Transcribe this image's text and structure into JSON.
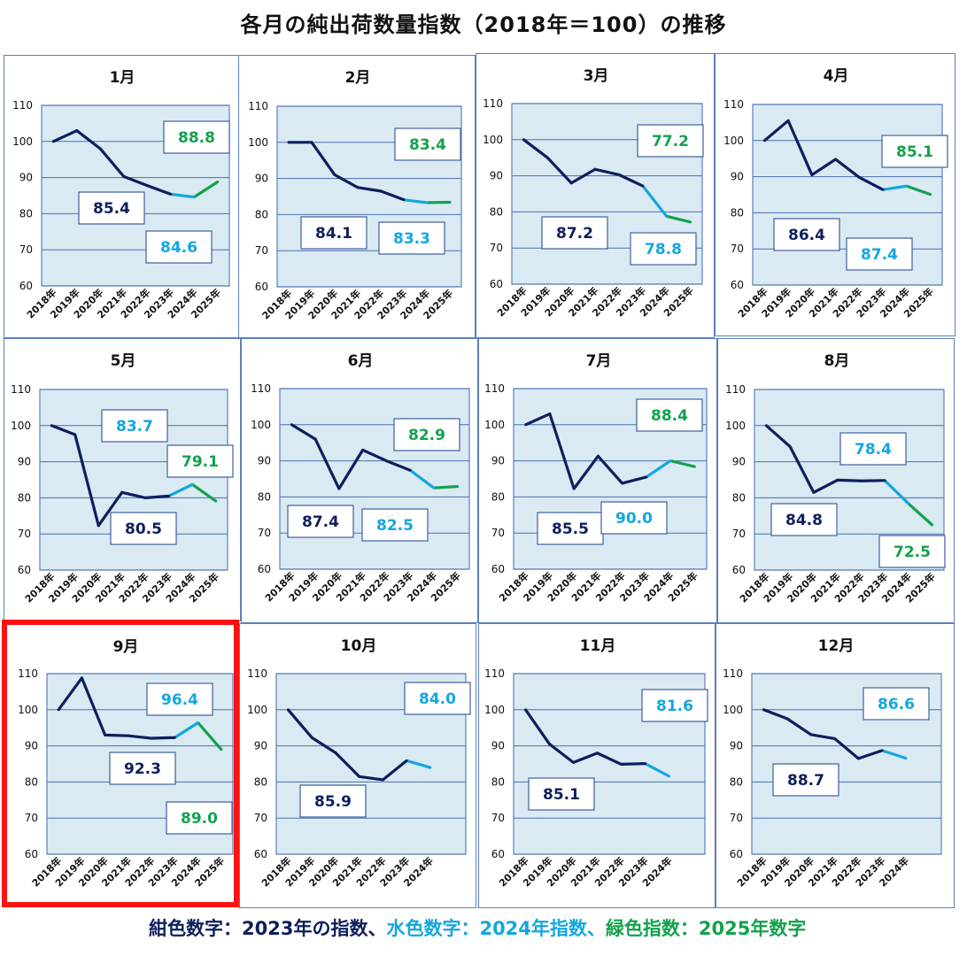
{
  "title": "各月の純出荷数量指数（2018年＝100）の推移",
  "footer": {
    "navy_text": "紺色数字：2023年の指数、",
    "light_text": "水色数字：2024年指数、",
    "green_text": "緑色指数：2025年数字"
  },
  "colors": {
    "navy": "#0d1f5c",
    "light_blue": "#14a6e0",
    "green": "#12a24b",
    "plot_bg": "#daeaf3",
    "highlight_frame": "#ff1111"
  },
  "chart_data": [
    {
      "type": "line",
      "title": "1月",
      "ylim": [
        60,
        110
      ],
      "yticks": [
        "60",
        "70",
        "80",
        "90",
        "100",
        "110"
      ],
      "categories": [
        "2018年",
        "2019年",
        "2020年",
        "2021年",
        "2022年",
        "2023年",
        "2024年",
        "2025年"
      ],
      "values": [
        100,
        103,
        98,
        90.3,
        87.8,
        85.4,
        84.6,
        88.8
      ],
      "labels": {
        "y2023": "85.4",
        "y2024": "84.6",
        "y2025": "88.8"
      }
    },
    {
      "type": "line",
      "title": "2月",
      "ylim": [
        60,
        110
      ],
      "yticks": [
        "60",
        "70",
        "80",
        "90",
        "100",
        "110"
      ],
      "categories": [
        "2018年",
        "2019年",
        "2020年",
        "2021年",
        "2022年",
        "2023年",
        "2024年",
        "2025年"
      ],
      "values": [
        100,
        100,
        91,
        87.5,
        86.5,
        84.1,
        83.3,
        83.4
      ],
      "labels": {
        "y2023": "84.1",
        "y2024": "83.3",
        "y2025": "83.4"
      }
    },
    {
      "type": "line",
      "title": "3月",
      "ylim": [
        60,
        110
      ],
      "yticks": [
        "60",
        "70",
        "80",
        "90",
        "100",
        "110"
      ],
      "categories": [
        "2018年",
        "2019年",
        "2020年",
        "2021年",
        "2022年",
        "2023年",
        "2024年",
        "2025年"
      ],
      "values": [
        100,
        95,
        88,
        91.8,
        90.3,
        87.2,
        78.8,
        77.2
      ],
      "labels": {
        "y2023": "87.2",
        "y2024": "78.8",
        "y2025": "77.2"
      }
    },
    {
      "type": "line",
      "title": "4月",
      "ylim": [
        60,
        110
      ],
      "yticks": [
        "60",
        "70",
        "80",
        "90",
        "100",
        "110"
      ],
      "categories": [
        "2018年",
        "2019年",
        "2020年",
        "2021年",
        "2022年",
        "2023年",
        "2024年",
        "2025年"
      ],
      "values": [
        100,
        105.5,
        90.5,
        94.8,
        89.8,
        86.4,
        87.4,
        85.1
      ],
      "labels": {
        "y2023": "86.4",
        "y2024": "87.4",
        "y2025": "85.1"
      }
    },
    {
      "type": "line",
      "title": "5月",
      "ylim": [
        60,
        110
      ],
      "yticks": [
        "60",
        "70",
        "80",
        "90",
        "100",
        "110"
      ],
      "categories": [
        "2018年",
        "2019年",
        "2020年",
        "2021年",
        "2022年",
        "2023年",
        "2024年",
        "2025年"
      ],
      "values": [
        100,
        97.5,
        72.3,
        81.5,
        80,
        80.5,
        83.7,
        79.1
      ],
      "labels": {
        "y2023": "80.5",
        "y2024": "83.7",
        "y2025": "79.1"
      }
    },
    {
      "type": "line",
      "title": "6月",
      "ylim": [
        60,
        110
      ],
      "yticks": [
        "60",
        "70",
        "80",
        "90",
        "100",
        "110"
      ],
      "categories": [
        "2018年",
        "2019年",
        "2020年",
        "2021年",
        "2022年",
        "2023年",
        "2024年",
        "2025年"
      ],
      "values": [
        100,
        96,
        82.3,
        93,
        90,
        87.4,
        82.5,
        82.9
      ],
      "labels": {
        "y2023": "87.4",
        "y2024": "82.5",
        "y2025": "82.9"
      }
    },
    {
      "type": "line",
      "title": "7月",
      "ylim": [
        60,
        110
      ],
      "yticks": [
        "60",
        "70",
        "80",
        "90",
        "100",
        "110"
      ],
      "categories": [
        "2018年",
        "2019年",
        "2020年",
        "2021年",
        "2022年",
        "2023年",
        "2024年",
        "2025年"
      ],
      "values": [
        100,
        103,
        82.3,
        91.3,
        83.8,
        85.5,
        90.0,
        88.4
      ],
      "labels": {
        "y2023": "85.5",
        "y2024": "90.0",
        "y2025": "88.4"
      }
    },
    {
      "type": "line",
      "title": "8月",
      "ylim": [
        60,
        110
      ],
      "yticks": [
        "60",
        "70",
        "80",
        "90",
        "100",
        "110"
      ],
      "categories": [
        "2018年",
        "2019年",
        "2020年",
        "2021年",
        "2022年",
        "2023年",
        "2024年",
        "2025年"
      ],
      "values": [
        100,
        94.2,
        81.5,
        84.9,
        84.7,
        84.8,
        78.4,
        72.5
      ],
      "labels": {
        "y2023": "84.8",
        "y2024": "78.4",
        "y2025": "72.5"
      }
    },
    {
      "type": "line",
      "title": "9月",
      "ylim": [
        60,
        110
      ],
      "yticks": [
        "60",
        "70",
        "80",
        "90",
        "100",
        "110"
      ],
      "categories": [
        "2018年",
        "2019年",
        "2020年",
        "2021年",
        "2022年",
        "2023年",
        "2024年",
        "2025年"
      ],
      "values": [
        100,
        108.8,
        93,
        92.8,
        92.1,
        92.3,
        96.4,
        89.0
      ],
      "labels": {
        "y2023": "92.3",
        "y2024": "96.4",
        "y2025": "89.0"
      }
    },
    {
      "type": "line",
      "title": "10月",
      "ylim": [
        60,
        110
      ],
      "yticks": [
        "60",
        "70",
        "80",
        "90",
        "100",
        "110"
      ],
      "categories": [
        "2018年",
        "2019年",
        "2020年",
        "2021年",
        "2022年",
        "2023年",
        "2024年"
      ],
      "values": [
        100,
        92.3,
        88.1,
        81.5,
        80.6,
        85.9,
        84.0
      ],
      "labels": {
        "y2023": "85.9",
        "y2024": "84.0"
      }
    },
    {
      "type": "line",
      "title": "11月",
      "ylim": [
        60,
        110
      ],
      "yticks": [
        "60",
        "70",
        "80",
        "90",
        "100",
        "110"
      ],
      "categories": [
        "2018年",
        "2019年",
        "2020年",
        "2021年",
        "2022年",
        "2023年",
        "2024年"
      ],
      "values": [
        100,
        90.5,
        85.4,
        88,
        84.9,
        85.1,
        81.6
      ],
      "labels": {
        "y2023": "85.1",
        "y2024": "81.6"
      }
    },
    {
      "type": "line",
      "title": "12月",
      "ylim": [
        60,
        110
      ],
      "yticks": [
        "60",
        "70",
        "80",
        "90",
        "100",
        "110"
      ],
      "categories": [
        "2018年",
        "2019年",
        "2020年",
        "2021年",
        "2022年",
        "2023年",
        "2024年"
      ],
      "values": [
        100,
        97.5,
        93.1,
        92,
        86.5,
        88.7,
        86.6
      ],
      "labels": {
        "y2023": "88.7",
        "y2024": "86.6"
      }
    }
  ]
}
